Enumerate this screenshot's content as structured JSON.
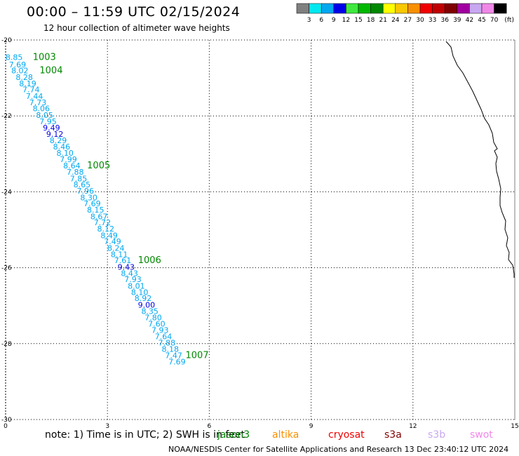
{
  "header": {
    "title": "00:00 – 11:59 UTC 02/15/2024",
    "subtitle": "12 hour collection of altimeter wave heights"
  },
  "colorbar": {
    "unit_label": "(ft)",
    "levels": [
      {
        "label": "3",
        "color": "#808080"
      },
      {
        "label": "6",
        "color": "#00e8f0"
      },
      {
        "label": "9",
        "color": "#00a8f0"
      },
      {
        "label": "12",
        "color": "#0000e8"
      },
      {
        "label": "15",
        "color": "#40e840"
      },
      {
        "label": "18",
        "color": "#00b800"
      },
      {
        "label": "21",
        "color": "#008800"
      },
      {
        "label": "24",
        "color": "#ffff00"
      },
      {
        "label": "27",
        "color": "#f8c800"
      },
      {
        "label": "30",
        "color": "#f89000"
      },
      {
        "label": "33",
        "color": "#f00000"
      },
      {
        "label": "36",
        "color": "#c00000"
      },
      {
        "label": "39",
        "color": "#800000"
      },
      {
        "label": "42",
        "color": "#a000a0"
      },
      {
        "label": "45",
        "color": "#c8a8f0"
      },
      {
        "label": "70",
        "color": "#f088e8"
      },
      {
        "label": "",
        "color": "#000000"
      }
    ]
  },
  "chart_data": {
    "type": "scatter",
    "title": "00:00 – 11:59 UTC 02/15/2024",
    "subtitle": "12 hour collection of altimeter wave heights",
    "xlim": [
      0,
      15
    ],
    "ylim": [
      -30,
      -20
    ],
    "x_ticks": [
      "0",
      "3",
      "6",
      "9",
      "12",
      "15"
    ],
    "y_ticks": [
      "-20",
      "-22",
      "-24",
      "-26",
      "-28",
      "-30"
    ],
    "grid": true,
    "series": [
      {
        "name": "jason3",
        "color_key": "green",
        "points": [
          {
            "x": 0.25,
            "y": -20.53,
            "label": "8.85"
          },
          {
            "x": 0.35,
            "y": -20.72,
            "label": "7.69"
          },
          {
            "x": 0.42,
            "y": -20.88,
            "label": "8.02"
          },
          {
            "x": 0.55,
            "y": -21.05,
            "label": "8.28"
          },
          {
            "x": 0.65,
            "y": -21.22,
            "label": "8.19"
          },
          {
            "x": 0.75,
            "y": -21.38,
            "label": "7.74"
          },
          {
            "x": 0.85,
            "y": -21.55,
            "label": "7.44"
          },
          {
            "x": 0.95,
            "y": -21.72,
            "label": "7.73"
          },
          {
            "x": 1.05,
            "y": -21.88,
            "label": "8.06"
          },
          {
            "x": 1.15,
            "y": -22.05,
            "label": "8.05"
          },
          {
            "x": 1.25,
            "y": -22.22,
            "label": "7.95"
          },
          {
            "x": 1.35,
            "y": -22.38,
            "label": "9.49"
          },
          {
            "x": 1.45,
            "y": -22.55,
            "label": "9.12"
          },
          {
            "x": 1.55,
            "y": -22.72,
            "label": "8.29"
          },
          {
            "x": 1.65,
            "y": -22.88,
            "label": "8.46"
          },
          {
            "x": 1.75,
            "y": -23.05,
            "label": "8.10"
          },
          {
            "x": 1.85,
            "y": -23.22,
            "label": "7.99"
          },
          {
            "x": 1.95,
            "y": -23.38,
            "label": "8.64"
          },
          {
            "x": 2.05,
            "y": -23.55,
            "label": "7.88"
          },
          {
            "x": 2.15,
            "y": -23.72,
            "label": "7.85"
          },
          {
            "x": 2.25,
            "y": -23.88,
            "label": "8.65"
          },
          {
            "x": 2.35,
            "y": -24.05,
            "label": "7.96"
          },
          {
            "x": 2.45,
            "y": -24.22,
            "label": "8.30"
          },
          {
            "x": 2.55,
            "y": -24.38,
            "label": "7.69"
          },
          {
            "x": 2.65,
            "y": -24.55,
            "label": "8.15"
          },
          {
            "x": 2.75,
            "y": -24.72,
            "label": "8.67"
          },
          {
            "x": 2.85,
            "y": -24.88,
            "label": "7.72"
          },
          {
            "x": 2.95,
            "y": -25.05,
            "label": "8.12"
          },
          {
            "x": 3.05,
            "y": -25.22,
            "label": "8.49"
          },
          {
            "x": 3.15,
            "y": -25.38,
            "label": "7.49"
          },
          {
            "x": 3.25,
            "y": -25.55,
            "label": "8.24"
          },
          {
            "x": 3.35,
            "y": -25.72,
            "label": "8.11"
          },
          {
            "x": 3.45,
            "y": -25.88,
            "label": "7.61"
          },
          {
            "x": 3.55,
            "y": -26.05,
            "label": "9.43"
          },
          {
            "x": 3.65,
            "y": -26.22,
            "label": "8.43"
          },
          {
            "x": 3.75,
            "y": -26.38,
            "label": "7.93"
          },
          {
            "x": 3.85,
            "y": -26.55,
            "label": "8.01"
          },
          {
            "x": 3.95,
            "y": -26.72,
            "label": "8.10"
          },
          {
            "x": 4.05,
            "y": -26.88,
            "label": "8.92"
          },
          {
            "x": 4.15,
            "y": -27.05,
            "label": "9.00"
          },
          {
            "x": 4.25,
            "y": -27.22,
            "label": "8.35"
          },
          {
            "x": 4.35,
            "y": -27.38,
            "label": "7.80"
          },
          {
            "x": 4.45,
            "y": -27.55,
            "label": "7.60"
          },
          {
            "x": 4.55,
            "y": -27.72,
            "label": "7.93"
          },
          {
            "x": 4.65,
            "y": -27.88,
            "label": "7.64"
          },
          {
            "x": 4.75,
            "y": -28.05,
            "label": "7.88"
          },
          {
            "x": 4.85,
            "y": -28.22,
            "label": "8.18"
          },
          {
            "x": 4.95,
            "y": -28.38,
            "label": "7.47"
          },
          {
            "x": 5.05,
            "y": -28.55,
            "label": "7.69"
          }
        ]
      }
    ],
    "time_labels": [
      {
        "x": 0.8,
        "y": -20.53,
        "label": "1003"
      },
      {
        "x": 1.0,
        "y": -20.88,
        "label": "1004"
      },
      {
        "x": 2.4,
        "y": -23.38,
        "label": "1005"
      },
      {
        "x": 3.9,
        "y": -25.88,
        "label": "1006"
      },
      {
        "x": 5.3,
        "y": -28.38,
        "label": "1007"
      }
    ],
    "legend": [
      {
        "label": "jason3",
        "color": "#008800"
      },
      {
        "label": "altika",
        "color": "#f89000"
      },
      {
        "label": "cryosat",
        "color": "#f00000"
      },
      {
        "label": "s3a",
        "color": "#800000"
      },
      {
        "label": "s3b",
        "color": "#c8a8f0"
      },
      {
        "label": "swot",
        "color": "#f088e8"
      }
    ]
  },
  "footer": {
    "note": "note: 1) Time is in UTC; 2) SWH is in feet",
    "credit": "NOAA/NESDIS Center for Satellite Applications and Research   13 Dec 23:40:12 UTC 2024"
  },
  "colors": {
    "value_normal": "#00a8f0",
    "value_high": "#0000e8",
    "time_label": "#008800",
    "grid": "#000000"
  }
}
